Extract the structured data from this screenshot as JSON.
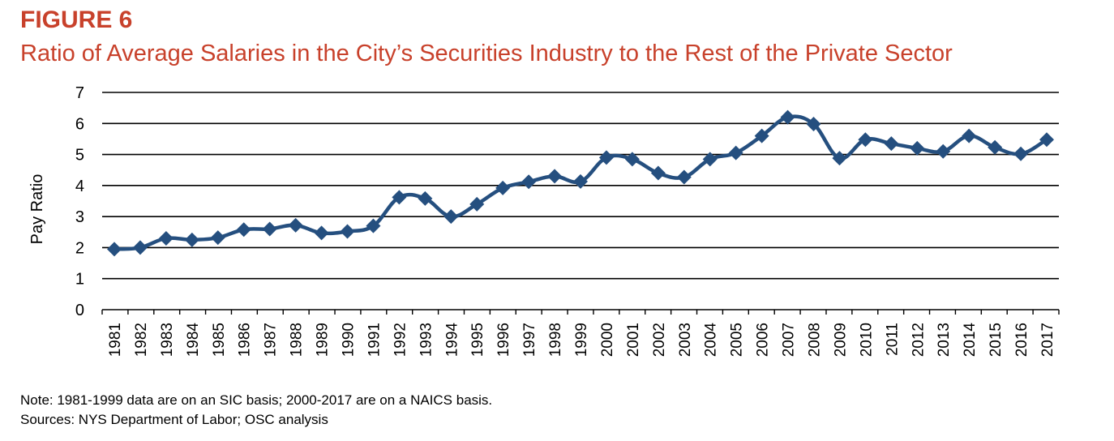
{
  "figure_label": "FIGURE 6",
  "title": "Ratio of Average Salaries in the City’s Securities Industry to the Rest of the Private Sector",
  "note": "Note: 1981-1999 data are on an SIC basis; 2000-2017 are on a NAICS basis.",
  "sources": "Sources: NYS Department of Labor; OSC analysis",
  "colors": {
    "title": "#c8412b",
    "series": "#254f7f",
    "grid": "#000000"
  },
  "chart_data": {
    "type": "line",
    "title": "Ratio of Average Salaries in the City’s Securities Industry to the Rest of the Private Sector",
    "xlabel": "",
    "ylabel": "Pay Ratio",
    "ylim": [
      0,
      7
    ],
    "yticks": [
      "0",
      "1",
      "2",
      "3",
      "4",
      "5",
      "6",
      "7"
    ],
    "grid": true,
    "categories": [
      "1981",
      "1982",
      "1983",
      "1984",
      "1985",
      "1986",
      "1987",
      "1988",
      "1989",
      "1990",
      "1991",
      "1992",
      "1993",
      "1994",
      "1995",
      "1996",
      "1997",
      "1998",
      "1999",
      "2000",
      "2001",
      "2002",
      "2003",
      "2004",
      "2005",
      "2006",
      "2007",
      "2008",
      "2009",
      "2010",
      "2011",
      "2012",
      "2013",
      "2014",
      "2015",
      "2016",
      "2017"
    ],
    "series": [
      {
        "name": "Pay Ratio",
        "values": [
          1.95,
          2.0,
          2.3,
          2.25,
          2.32,
          2.58,
          2.6,
          2.72,
          2.47,
          2.52,
          2.7,
          3.62,
          3.58,
          3.0,
          3.4,
          3.92,
          4.12,
          4.3,
          4.13,
          4.9,
          4.85,
          4.4,
          4.27,
          4.85,
          5.05,
          5.6,
          6.2,
          5.98,
          4.88,
          5.48,
          5.35,
          5.2,
          5.1,
          5.6,
          5.23,
          5.02,
          5.48
        ]
      }
    ]
  }
}
